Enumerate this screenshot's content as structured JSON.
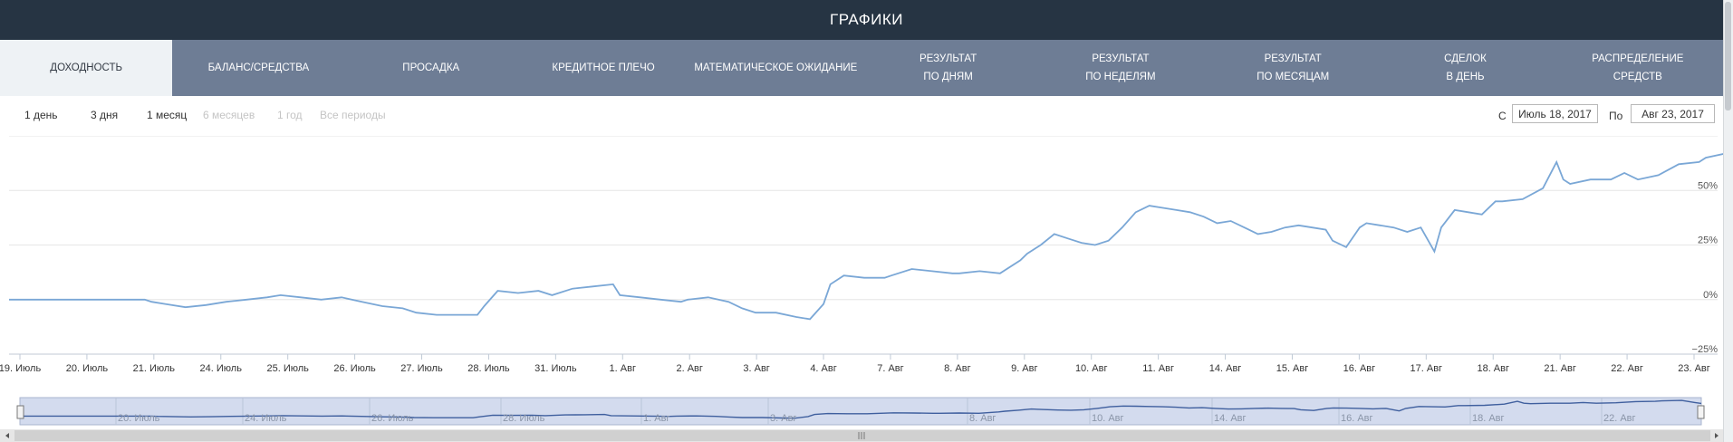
{
  "header": {
    "title": "ГРАФИКИ"
  },
  "tabs": [
    {
      "label": "ДОХОДНОСТЬ",
      "active": true
    },
    {
      "label": "БАЛАНС/СРЕДСТВА"
    },
    {
      "label": "ПРОСАДКА"
    },
    {
      "label": "КРЕДИТНОЕ ПЛЕЧО"
    },
    {
      "label": "МАТЕМАТИЧЕСКОЕ ОЖИДАНИЕ"
    },
    {
      "label": "РЕЗУЛЬТАТ\nПО ДНЯМ"
    },
    {
      "label": "РЕЗУЛЬТАТ\nПО НЕДЕЛЯМ"
    },
    {
      "label": "РЕЗУЛЬТАТ\nПО МЕСЯЦАМ"
    },
    {
      "label": "СДЕЛОК\nВ ДЕНЬ"
    },
    {
      "label": "РАСПРЕДЕЛЕНИЕ\nСРЕДСТВ"
    }
  ],
  "range_selector": {
    "buttons": [
      {
        "label": "1 день",
        "enabled": true
      },
      {
        "label": "3 дня",
        "enabled": true
      },
      {
        "label": "1 месяц",
        "enabled": true
      },
      {
        "label": "6 месяцев",
        "enabled": false
      },
      {
        "label": "1 год",
        "enabled": false
      },
      {
        "label": "Все периоды",
        "enabled": false
      }
    ],
    "from_label": "С",
    "from_value": "Июль 18, 2017",
    "to_label": "По",
    "to_value": "Авг 23, 2017"
  },
  "colors": {
    "line": "#7aa7d6",
    "header_bg": "#263443",
    "tab_bg": "#6e7d95",
    "tab_active_bg": "#eef2f5",
    "navigator_fill": "#d3dbee",
    "navigator_line": "#3f5f9e"
  },
  "chart_data": {
    "type": "line",
    "ylabel": "",
    "yticks": [
      -25,
      0,
      25,
      50
    ],
    "ytick_labels": [
      "−25%",
      "0%",
      "25%",
      "50%"
    ],
    "ylim": [
      -25,
      75
    ],
    "grid": true,
    "categories": [
      "19. Июль",
      "20. Июль",
      "21. Июль",
      "24. Июль",
      "25. Июль",
      "26. Июль",
      "27. Июль",
      "28. Июль",
      "31. Июль",
      "1. Авг",
      "2. Авг",
      "3. Авг",
      "4. Авг",
      "7. Авг",
      "8. Авг",
      "9. Авг",
      "10. Авг",
      "11. Авг",
      "14. Авг",
      "15. Авг",
      "16. Авг",
      "17. Авг",
      "18. Авг",
      "21. Авг",
      "22. Авг",
      "23. Авг"
    ],
    "series": [
      {
        "values": [
          [
            0.0,
            0
          ],
          [
            1.0,
            0
          ],
          [
            2.0,
            0
          ],
          [
            2.1,
            -1
          ],
          [
            2.3,
            -2
          ],
          [
            2.6,
            -3.5
          ],
          [
            2.9,
            -2.5
          ],
          [
            3.2,
            -1
          ],
          [
            3.5,
            0
          ],
          [
            3.8,
            1
          ],
          [
            4.0,
            2
          ],
          [
            4.3,
            1
          ],
          [
            4.6,
            0
          ],
          [
            4.9,
            1
          ],
          [
            5.2,
            -1
          ],
          [
            5.5,
            -3
          ],
          [
            5.8,
            -4
          ],
          [
            6.0,
            -6
          ],
          [
            6.3,
            -7
          ],
          [
            6.6,
            -7
          ],
          [
            6.9,
            -7
          ],
          [
            7.0,
            -3
          ],
          [
            7.2,
            4
          ],
          [
            7.5,
            3
          ],
          [
            7.8,
            4
          ],
          [
            8.0,
            2
          ],
          [
            8.3,
            5
          ],
          [
            8.6,
            6
          ],
          [
            8.9,
            7
          ],
          [
            9.0,
            2
          ],
          [
            9.3,
            1
          ],
          [
            9.6,
            0
          ],
          [
            9.9,
            -1
          ],
          [
            10.0,
            0
          ],
          [
            10.3,
            1
          ],
          [
            10.6,
            -1
          ],
          [
            10.8,
            -4
          ],
          [
            11.0,
            -6
          ],
          [
            11.3,
            -6
          ],
          [
            11.6,
            -8
          ],
          [
            11.8,
            -9
          ],
          [
            12.0,
            -2
          ],
          [
            12.1,
            7
          ],
          [
            12.3,
            11
          ],
          [
            12.6,
            10
          ],
          [
            12.9,
            10
          ],
          [
            13.0,
            11
          ],
          [
            13.3,
            14
          ],
          [
            13.6,
            13
          ],
          [
            13.9,
            12
          ],
          [
            14.0,
            12
          ],
          [
            14.3,
            13
          ],
          [
            14.6,
            12
          ],
          [
            14.9,
            18
          ],
          [
            15.0,
            21
          ],
          [
            15.2,
            25
          ],
          [
            15.4,
            30
          ],
          [
            15.6,
            28
          ],
          [
            15.8,
            26
          ],
          [
            16.0,
            25
          ],
          [
            16.2,
            27
          ],
          [
            16.4,
            33
          ],
          [
            16.6,
            40
          ],
          [
            16.8,
            43
          ],
          [
            17.0,
            42
          ],
          [
            17.2,
            41
          ],
          [
            17.4,
            40
          ],
          [
            17.6,
            38
          ],
          [
            17.8,
            35
          ],
          [
            18.0,
            36
          ],
          [
            18.2,
            33
          ],
          [
            18.4,
            30
          ],
          [
            18.6,
            31
          ],
          [
            18.8,
            33
          ],
          [
            19.0,
            34
          ],
          [
            19.2,
            33
          ],
          [
            19.4,
            32
          ],
          [
            19.5,
            27
          ],
          [
            19.7,
            24
          ],
          [
            19.9,
            33
          ],
          [
            20.0,
            35
          ],
          [
            20.2,
            34
          ],
          [
            20.4,
            33
          ],
          [
            20.6,
            31
          ],
          [
            20.8,
            33
          ],
          [
            21.0,
            22
          ],
          [
            21.1,
            33
          ],
          [
            21.3,
            41
          ],
          [
            21.5,
            40
          ],
          [
            21.7,
            39
          ],
          [
            21.9,
            45
          ],
          [
            22.0,
            45
          ],
          [
            22.3,
            46
          ],
          [
            22.6,
            51
          ],
          [
            22.8,
            63
          ],
          [
            22.9,
            55
          ],
          [
            23.0,
            53
          ],
          [
            23.3,
            55
          ],
          [
            23.6,
            55
          ],
          [
            23.8,
            58
          ],
          [
            24.0,
            55
          ],
          [
            24.3,
            57
          ],
          [
            24.6,
            62
          ],
          [
            24.9,
            63
          ],
          [
            25.0,
            65
          ],
          [
            25.3,
            67
          ],
          [
            25.5,
            58
          ],
          [
            25.6,
            54
          ]
        ]
      }
    ]
  },
  "navigator": {
    "labels": [
      "20. Июль",
      "24. Июль",
      "26. Июль",
      "28. Июль",
      "1. Авг",
      "3. Авг",
      "8. Авг",
      "10. Авг",
      "14. Авг",
      "16. Авг",
      "18. Авг",
      "22. Авг"
    ]
  }
}
